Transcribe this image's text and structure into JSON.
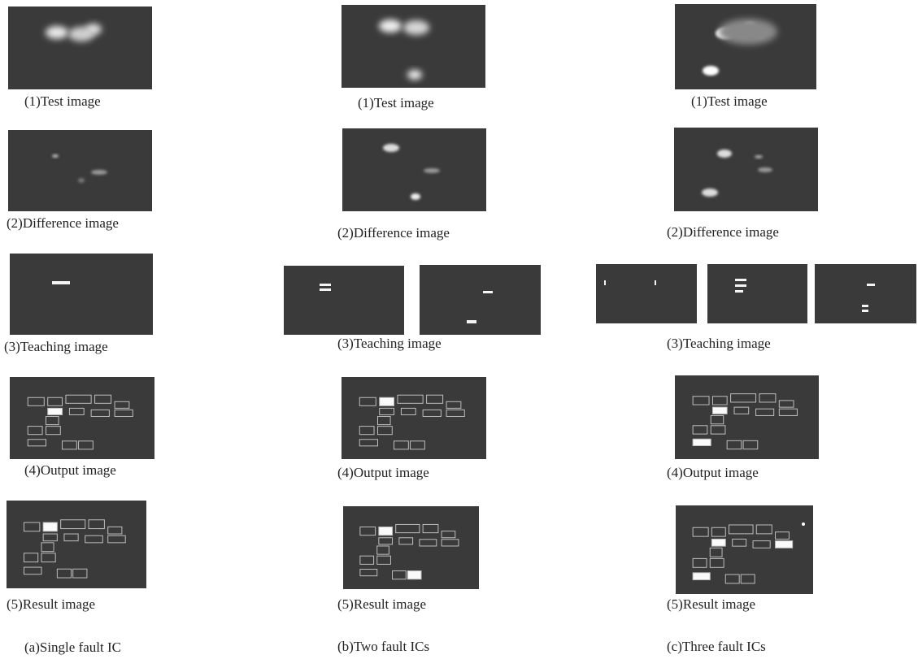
{
  "columns": [
    {
      "captions": [
        "(1)Test image",
        "(2)Difference image",
        "(3)Teaching image",
        "(4)Output image",
        "(5)Result image"
      ],
      "label": "(a)Single fault IC"
    },
    {
      "captions": [
        "(1)Test image",
        "(2)Difference image",
        "(3)Teaching image",
        "(4)Output image",
        "(5)Result image"
      ],
      "label": "(b)Two fault ICs"
    },
    {
      "captions": [
        "(1)Test image",
        "(2)Difference image",
        "(3)Teaching image",
        "(4)Output image",
        "(5)Result image"
      ],
      "label": "(c)Three fault ICs"
    }
  ]
}
